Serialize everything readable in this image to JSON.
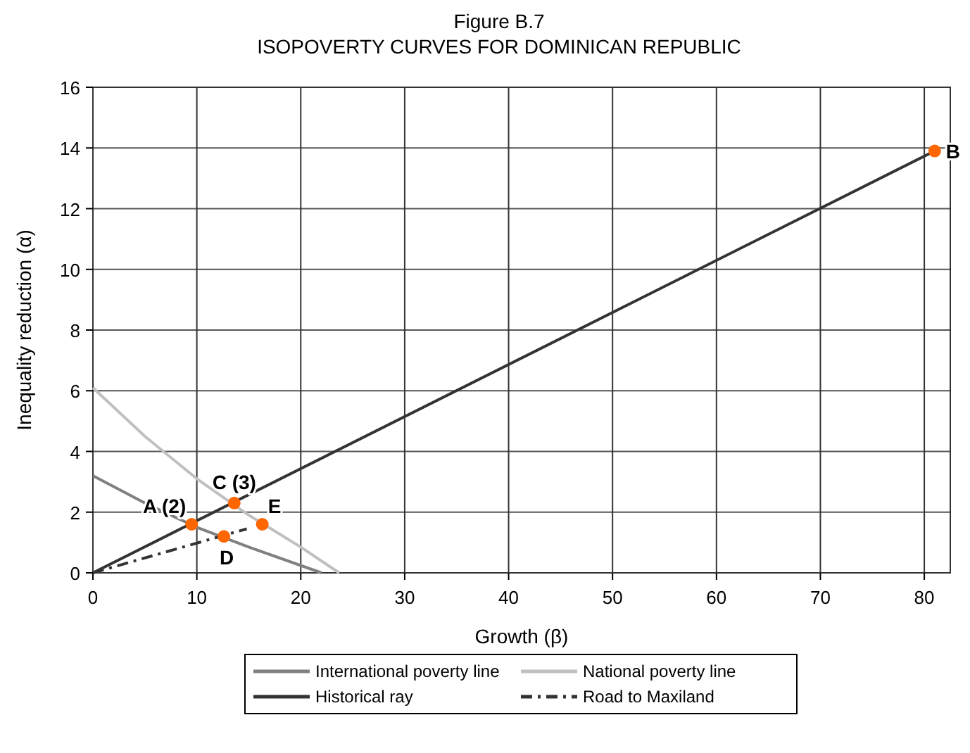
{
  "chart_data": {
    "type": "line",
    "title": "Figure B.7",
    "subtitle": "ISOPOVERTY CURVES FOR DOMINICAN REPUBLIC",
    "xlabel": "Growth (β)",
    "ylabel": "Inequality reduction (α)",
    "xlim": [
      0,
      82.5
    ],
    "xticks": [
      0,
      10,
      20,
      30,
      40,
      50,
      60,
      70,
      80
    ],
    "ylim": [
      0,
      16
    ],
    "yticks": [
      0,
      2,
      4,
      6,
      8,
      10,
      12,
      14,
      16
    ],
    "grid": true,
    "legend": "bottom",
    "marker": "none",
    "series": [
      {
        "name": "International poverty line",
        "color": "#808080",
        "x": [
          0,
          5,
          10,
          15,
          22
        ],
        "values": [
          3.2,
          2.3,
          1.5,
          0.85,
          0
        ]
      },
      {
        "name": "National poverty line",
        "color": "#c0c0c0",
        "x": [
          0,
          5,
          10,
          15,
          20,
          23.7
        ],
        "values": [
          6.1,
          4.5,
          3.1,
          1.9,
          0.85,
          0
        ]
      },
      {
        "name": "Historical ray",
        "color": "#333333",
        "x": [
          0,
          81
        ],
        "values": [
          0,
          13.9
        ]
      },
      {
        "name": "Road to Maxiland",
        "color": "#333333",
        "line_style": "dashed",
        "x": [
          0,
          14.8
        ],
        "values": [
          0,
          1.45
        ]
      },
      {
        "type": "scatter",
        "marker": "circle",
        "color": "#ff6600",
        "x": [
          9.5,
          13.6,
          12.6,
          16.3,
          81
        ],
        "values": [
          1.6,
          2.3,
          1.2,
          1.6,
          13.9
        ]
      }
    ],
    "annotations": [
      {
        "text": "A (2)",
        "x": 9.5,
        "y": 1.6
      },
      {
        "text": "C (3)",
        "x": 13.6,
        "y": 2.3
      },
      {
        "text": "D",
        "x": 12.6,
        "y": 1.2
      },
      {
        "text": "E",
        "x": 16.3,
        "y": 1.6
      },
      {
        "text": "B",
        "x": 81,
        "y": 13.9
      }
    ]
  }
}
